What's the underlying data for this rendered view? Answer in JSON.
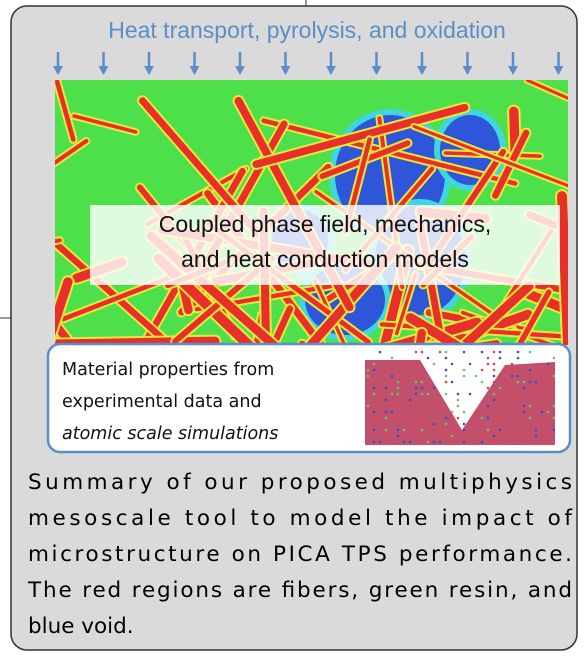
{
  "header": {
    "title": "Heat transport, pyrolysis, and oxidation"
  },
  "model_label": {
    "lines": [
      "Coupled phase field, mechanics,",
      "and heat conduction models"
    ]
  },
  "inset": {
    "lines": [
      "Material properties from",
      "experimental data and",
      "atomic scale simulations"
    ]
  },
  "caption": {
    "lines": [
      "Summary of our proposed multiphysics",
      "mesoscale tool to model the impact of",
      "microstructure on PICA TPS performance.",
      "The red regions are fibers, green resin, and",
      "blue void."
    ]
  }
}
